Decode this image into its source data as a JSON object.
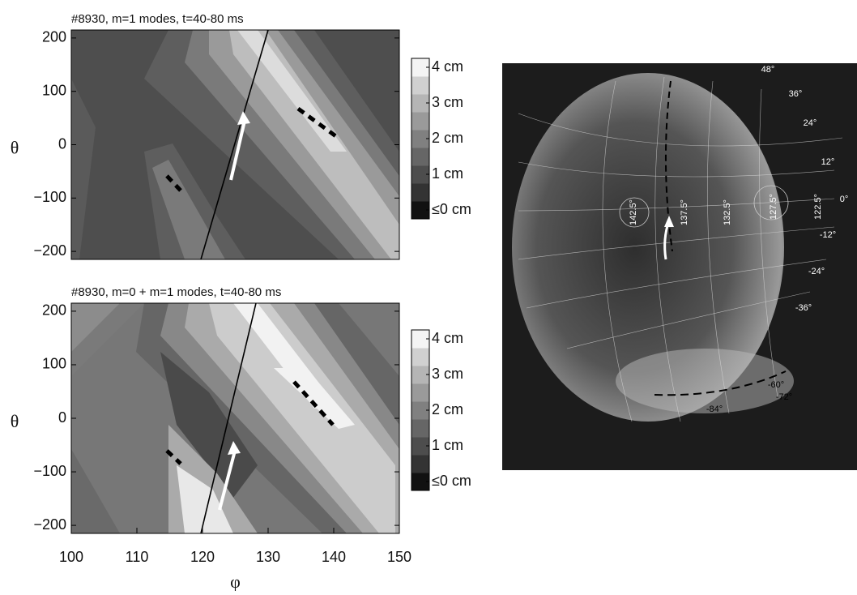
{
  "chart_data": [
    {
      "type": "contour",
      "title": "#8930,  m=1 modes, t=40-80 ms",
      "y_label": "θ",
      "xlim": [
        100,
        150
      ],
      "ylim": [
        -215,
        215
      ],
      "yticks": [
        {
          "value": -200,
          "label": "−200"
        },
        {
          "value": -100,
          "label": "−100"
        },
        0,
        100,
        200
      ],
      "colorbar_lim": [
        -0.25,
        4.25
      ],
      "colorbar_ticks": [
        {
          "value": 4,
          "label": "4 cm"
        },
        {
          "value": 3,
          "label": "3 cm"
        },
        {
          "value": 2,
          "label": "2 cm"
        },
        {
          "value": 1,
          "label": "1 cm"
        },
        {
          "value": 0,
          "label": "≤0 cm"
        }
      ],
      "colorbar_colors": [
        "#111111",
        "#333333",
        "#4d4d4d",
        "#666666",
        "#808080",
        "#9a9a9a",
        "#b5b5b5",
        "#d0d0d0",
        "#f4f4f4"
      ]
    },
    {
      "type": "contour",
      "title": "#8930, m=0 + m=1 modes, t=40-80 ms",
      "y_label": "θ",
      "x_label": "φ",
      "xlim": [
        100,
        150
      ],
      "ylim": [
        -215,
        215
      ],
      "xticks": [
        100,
        110,
        120,
        130,
        140,
        150
      ],
      "yticks": [
        {
          "value": -200,
          "label": "−200"
        },
        {
          "value": -100,
          "label": "−100"
        },
        0,
        100,
        200
      ],
      "colorbar_lim": [
        -0.25,
        4.25
      ],
      "colorbar_ticks": [
        {
          "value": 4,
          "label": "4 cm"
        },
        {
          "value": 3,
          "label": "3 cm"
        },
        {
          "value": 2,
          "label": "2 cm"
        },
        {
          "value": 1,
          "label": "1 cm"
        },
        {
          "value": 0,
          "label": "≤0 cm"
        }
      ],
      "colorbar_colors": [
        "#111111",
        "#333333",
        "#4d4d4d",
        "#666666",
        "#808080",
        "#9a9a9a",
        "#b5b5b5",
        "#d0d0d0",
        "#f4f4f4"
      ]
    }
  ],
  "image": {
    "phi_labels": [
      "142.5°",
      "137.5°",
      "132.5°",
      "127.5°",
      "122.5°"
    ],
    "theta_labels": [
      "48°",
      "36°",
      "24°",
      "12°",
      "0°",
      "-12°",
      "-24°",
      "-36°",
      "-60°",
      "-72°",
      "-84°"
    ]
  }
}
